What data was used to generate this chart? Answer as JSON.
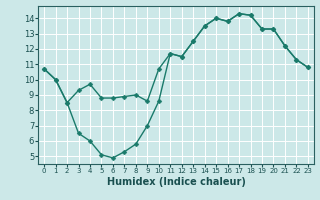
{
  "xlabel": "Humidex (Indice chaleur)",
  "background_color": "#cce8e8",
  "grid_color": "#ffffff",
  "line_color": "#1a7a6a",
  "markersize": 2.5,
  "linewidth": 1.0,
  "xlim": [
    -0.5,
    23.5
  ],
  "ylim": [
    4.5,
    14.8
  ],
  "xticks": [
    0,
    1,
    2,
    3,
    4,
    5,
    6,
    7,
    8,
    9,
    10,
    11,
    12,
    13,
    14,
    15,
    16,
    17,
    18,
    19,
    20,
    21,
    22,
    23
  ],
  "yticks": [
    5,
    6,
    7,
    8,
    9,
    10,
    11,
    12,
    13,
    14
  ],
  "series1": [
    [
      0,
      10.7
    ],
    [
      1,
      10.0
    ],
    [
      2,
      8.5
    ],
    [
      3,
      6.5
    ],
    [
      4,
      6.0
    ],
    [
      5,
      5.1
    ],
    [
      6,
      4.9
    ],
    [
      7,
      5.3
    ],
    [
      8,
      5.8
    ],
    [
      9,
      7.0
    ],
    [
      10,
      8.6
    ],
    [
      11,
      11.7
    ],
    [
      12,
      11.5
    ],
    [
      13,
      12.5
    ],
    [
      14,
      13.5
    ],
    [
      15,
      14.0
    ],
    [
      16,
      13.8
    ],
    [
      17,
      14.3
    ],
    [
      18,
      14.2
    ],
    [
      19,
      13.3
    ],
    [
      20,
      13.3
    ],
    [
      21,
      12.2
    ],
    [
      22,
      11.3
    ],
    [
      23,
      10.8
    ]
  ],
  "series2": [
    [
      0,
      10.7
    ],
    [
      1,
      10.0
    ],
    [
      2,
      8.5
    ],
    [
      3,
      9.3
    ],
    [
      4,
      9.7
    ],
    [
      5,
      8.8
    ],
    [
      6,
      8.8
    ],
    [
      7,
      8.9
    ],
    [
      8,
      9.0
    ],
    [
      9,
      8.6
    ],
    [
      10,
      10.7
    ],
    [
      11,
      11.7
    ],
    [
      12,
      11.5
    ],
    [
      13,
      12.5
    ],
    [
      14,
      13.5
    ],
    [
      15,
      14.0
    ],
    [
      16,
      13.8
    ],
    [
      17,
      14.3
    ],
    [
      18,
      14.2
    ],
    [
      19,
      13.3
    ],
    [
      20,
      13.3
    ],
    [
      21,
      12.2
    ],
    [
      22,
      11.3
    ],
    [
      23,
      10.8
    ]
  ]
}
